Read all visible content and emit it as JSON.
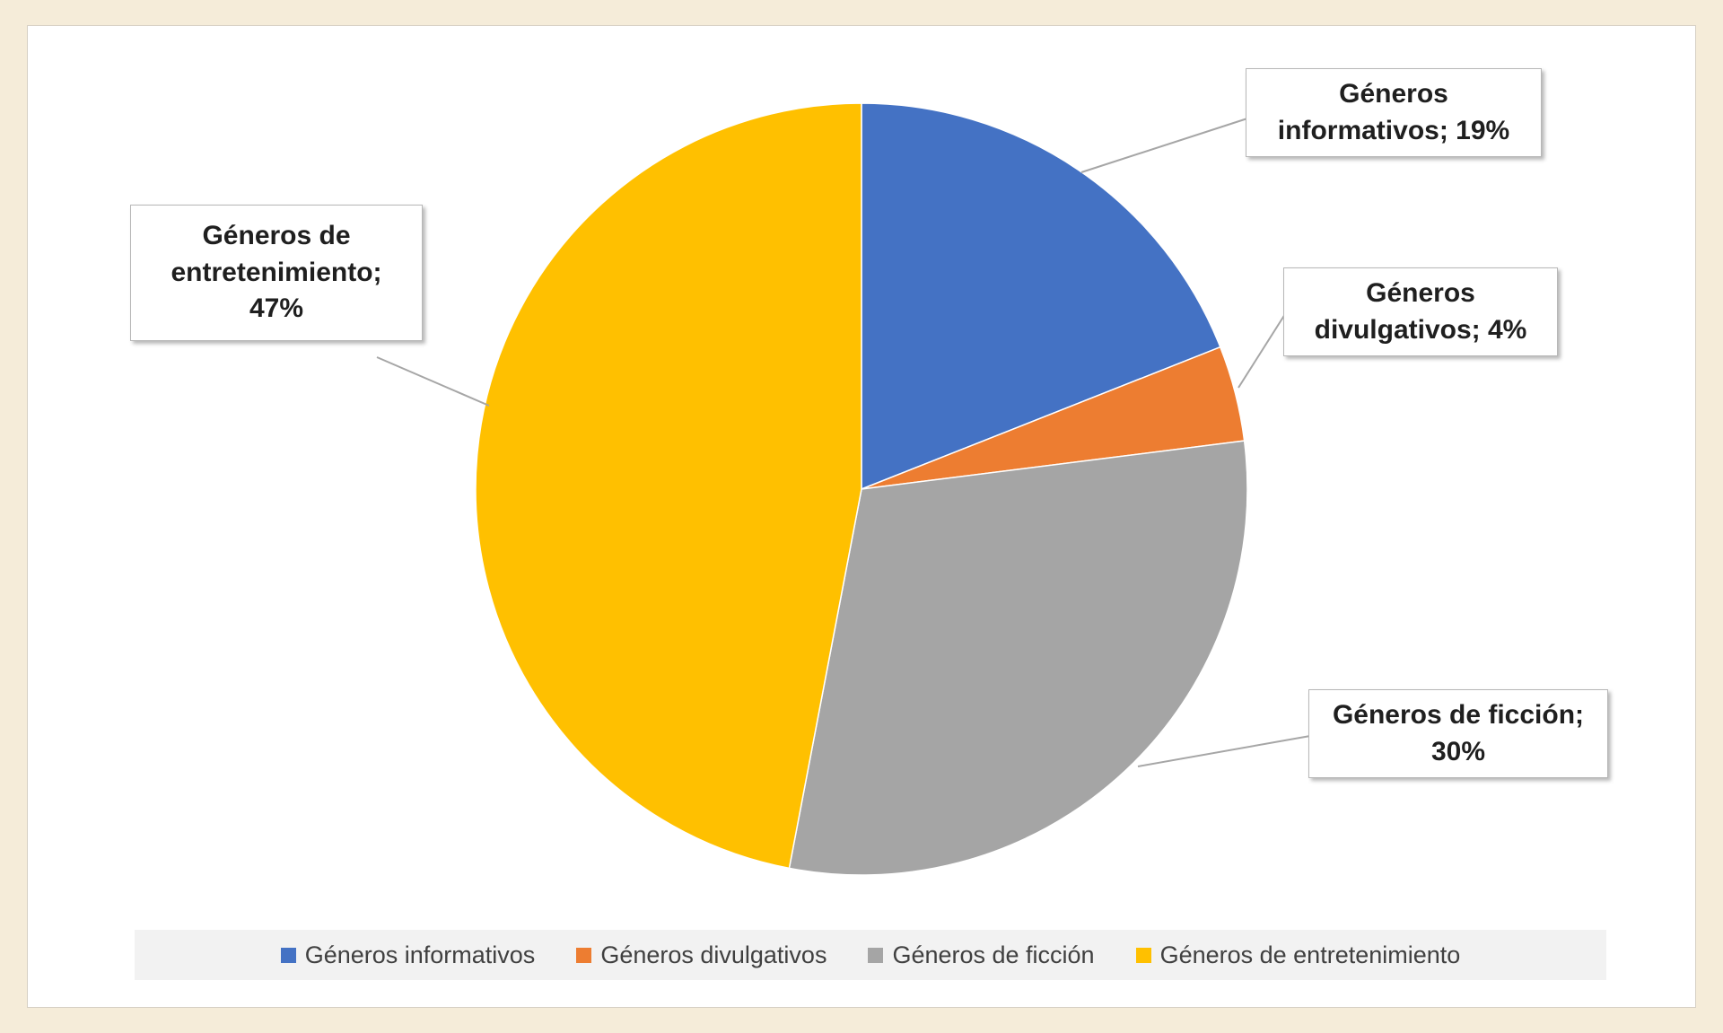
{
  "page": {
    "background_color": "#f5ecd9",
    "panel_background": "#ffffff"
  },
  "chart_data": {
    "type": "pie",
    "categories": [
      "Géneros informativos",
      "Géneros divulgativos",
      "Géneros de ficción",
      "Géneros de entretenimiento"
    ],
    "values": [
      19,
      4,
      30,
      47
    ],
    "unit": "%",
    "colors": [
      "#4472C4",
      "#ED7D31",
      "#A5A5A5",
      "#FFC000"
    ],
    "start_angle_deg": -90,
    "direction": "clockwise",
    "legend_position": "bottom",
    "leader_line_color": "#a6a6a6",
    "data_labels": [
      {
        "lines": [
          "Géneros",
          "informativos; 19%"
        ]
      },
      {
        "lines": [
          "Géneros",
          "divulgativos; 4%"
        ]
      },
      {
        "lines": [
          "Géneros de ficción;",
          "30%"
        ]
      },
      {
        "lines": [
          "Géneros de",
          "entretenimiento;",
          "47%"
        ]
      }
    ],
    "legend": [
      {
        "label": "Géneros informativos",
        "color": "#4472C4"
      },
      {
        "label": "Géneros divulgativos",
        "color": "#ED7D31"
      },
      {
        "label": "Géneros de ficción",
        "color": "#A5A5A5"
      },
      {
        "label": "Géneros de entretenimiento",
        "color": "#FFC000"
      }
    ]
  }
}
